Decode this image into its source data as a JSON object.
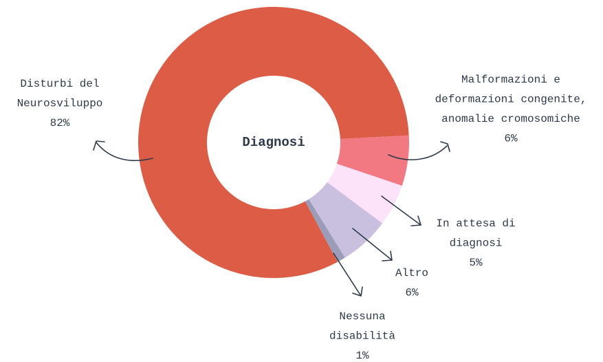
{
  "chart_data": {
    "type": "donut",
    "title": "Diagnosi",
    "categories": [
      [
        "Disturbi del",
        "Neurosviluppo"
      ],
      [
        "Malformazioni e",
        "deformazioni congenite,",
        "anomalie cromosomiche"
      ],
      [
        "In attesa di",
        "diagnosi"
      ],
      [
        "Altro"
      ],
      [
        "Nessuna",
        "disabilità"
      ]
    ],
    "values": [
      82,
      6,
      5,
      6,
      1
    ],
    "value_labels": [
      "82%",
      "6%",
      "5%",
      "6%",
      "1%"
    ],
    "colors": [
      "#dc5c45",
      "#f27882",
      "#fde3fa",
      "#c9bfdf",
      "#9b9db8"
    ]
  }
}
